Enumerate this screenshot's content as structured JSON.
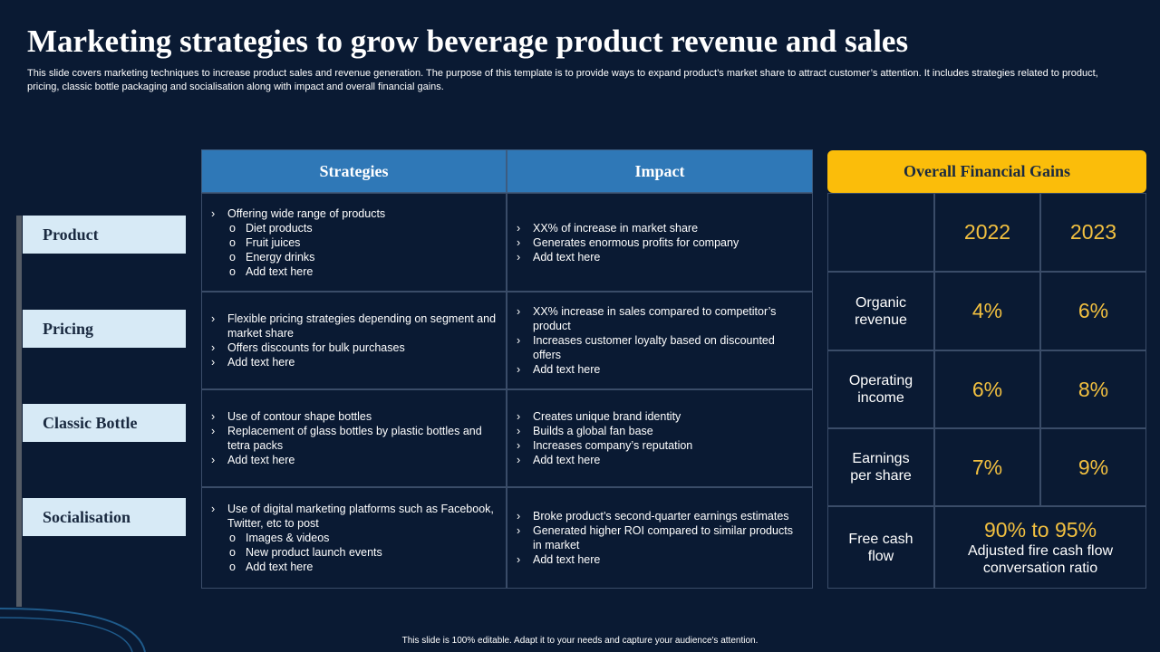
{
  "header": {
    "title": "Marketing strategies to grow beverage product revenue and sales",
    "description": "This slide covers marketing techniques to increase product sales and revenue generation. The purpose of this template is to provide ways to expand product’s market share to attract customer’s attention. It includes strategies related to product, pricing, classic bottle packaging and socialisation along with impact and overall financial gains."
  },
  "categories": [
    "Product",
    "Pricing",
    "Classic Bottle",
    "Socialisation"
  ],
  "table": {
    "headers": [
      "Strategies",
      "Impact"
    ],
    "rows": [
      {
        "strategies": [
          {
            "text": "Offering wide range of products",
            "subitems": [
              "Diet products",
              "Fruit juices",
              "Energy drinks",
              "Add text here"
            ]
          }
        ],
        "impact": [
          {
            "text": "XX% of increase in market share"
          },
          {
            "text": "Generates enormous profits for company"
          },
          {
            "text": "Add text here"
          }
        ]
      },
      {
        "strategies": [
          {
            "text": "Flexible pricing strategies depending on segment and market share"
          },
          {
            "text": "Offers discounts for bulk purchases"
          },
          {
            "text": "Add text here"
          }
        ],
        "impact": [
          {
            "text": "XX% increase in sales compared to competitor’s product"
          },
          {
            "text": "Increases customer loyalty based on discounted offers"
          },
          {
            "text": "Add text here"
          }
        ]
      },
      {
        "strategies": [
          {
            "text": "Use of contour shape bottles"
          },
          {
            "text": "Replacement of glass bottles by plastic bottles and tetra packs"
          },
          {
            "text": "Add text here"
          }
        ],
        "impact": [
          {
            "text": "Creates unique brand identity"
          },
          {
            "text": "Builds a global fan base"
          },
          {
            "text": "Increases company’s reputation"
          },
          {
            "text": "Add text here"
          }
        ]
      },
      {
        "strategies": [
          {
            "text": "Use of digital marketing platforms such as Facebook, Twitter, etc to post",
            "subitems": [
              "Images & videos",
              "New product launch events",
              "Add text here"
            ]
          }
        ],
        "impact": [
          {
            "text": "Broke product’s second-quarter earnings estimates"
          },
          {
            "text": "Generated higher ROI compared to similar products in market"
          },
          {
            "text": "Add text here"
          }
        ]
      }
    ]
  },
  "gains": {
    "title": "Overall Financial Gains",
    "years": [
      "2022",
      "2023"
    ],
    "rows": [
      {
        "label": "Organic revenue",
        "values": [
          "4%",
          "6%"
        ]
      },
      {
        "label": "Operating income",
        "values": [
          "6%",
          "8%"
        ]
      },
      {
        "label": "Earnings per share",
        "values": [
          "7%",
          "9%"
        ]
      }
    ],
    "free_cash_flow": {
      "label": "Free cash flow",
      "value": "90% to 95%",
      "note": "Adjusted fire cash flow conversation ratio"
    }
  },
  "footer": "This slide is 100% editable. Adapt it to your needs and capture your audience's attention."
}
